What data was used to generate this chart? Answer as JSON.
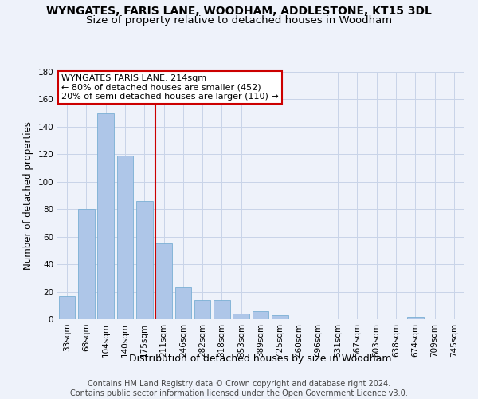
{
  "title": "WYNGATES, FARIS LANE, WOODHAM, ADDLESTONE, KT15 3DL",
  "subtitle": "Size of property relative to detached houses in Woodham",
  "xlabel": "Distribution of detached houses by size in Woodham",
  "ylabel": "Number of detached properties",
  "bar_labels": [
    "33sqm",
    "68sqm",
    "104sqm",
    "140sqm",
    "175sqm",
    "211sqm",
    "246sqm",
    "282sqm",
    "318sqm",
    "353sqm",
    "389sqm",
    "425sqm",
    "460sqm",
    "496sqm",
    "531sqm",
    "567sqm",
    "603sqm",
    "638sqm",
    "674sqm",
    "709sqm",
    "745sqm"
  ],
  "bar_values": [
    17,
    80,
    150,
    119,
    86,
    55,
    23,
    14,
    14,
    4,
    6,
    3,
    0,
    0,
    0,
    0,
    0,
    0,
    2,
    0,
    0
  ],
  "bar_color": "#aec6e8",
  "bar_edge_color": "#7aafd4",
  "property_line_x": 5,
  "property_line_label": "WYNGATES FARIS LANE: 214sqm",
  "annotation_line1": "← 80% of detached houses are smaller (452)",
  "annotation_line2": "20% of semi-detached houses are larger (110) →",
  "red_color": "#cc0000",
  "box_color": "#ffffff",
  "grid_color": "#c8d4e8",
  "background_color": "#eef2fa",
  "ylim": [
    0,
    180
  ],
  "yticks": [
    0,
    20,
    40,
    60,
    80,
    100,
    120,
    140,
    160,
    180
  ],
  "footer1": "Contains HM Land Registry data © Crown copyright and database right 2024.",
  "footer2": "Contains public sector information licensed under the Open Government Licence v3.0.",
  "title_fontsize": 10,
  "subtitle_fontsize": 9.5,
  "xlabel_fontsize": 9,
  "ylabel_fontsize": 8.5,
  "tick_fontsize": 7.5,
  "annotation_fontsize": 8,
  "footer_fontsize": 7
}
